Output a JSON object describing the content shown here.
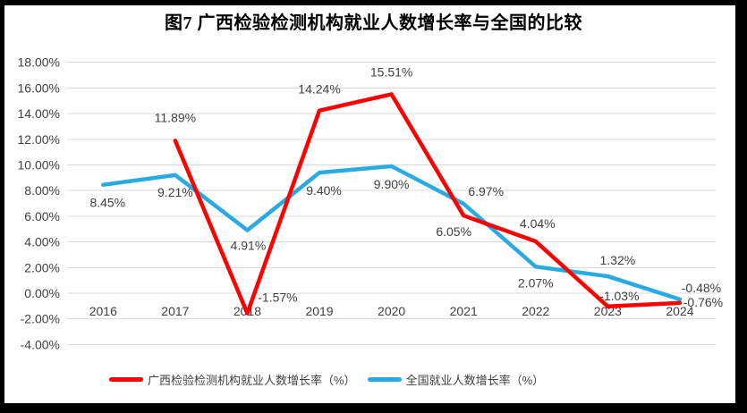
{
  "title": "图7 广西检验检测机构就业人数增长率与全国的比较",
  "chart_data": {
    "type": "line",
    "title": "图7 广西检验检测机构就业人数增长率与全国的比较",
    "categories": [
      "2016",
      "2017",
      "2018",
      "2019",
      "2020",
      "2021",
      "2022",
      "2023",
      "2024"
    ],
    "series": [
      {
        "name": "广西检验检测机构就业人数增长率（%）",
        "color": "#FF0000",
        "values": [
          null,
          11.89,
          -1.57,
          14.24,
          15.51,
          6.05,
          4.04,
          -1.03,
          -0.76
        ],
        "labels": [
          "",
          "11.89%",
          "-1.57%",
          "14.24%",
          "15.51%",
          "6.05%",
          "4.04%",
          "-1.03%",
          "-0.76%"
        ]
      },
      {
        "name": "全国就业人数增长率（%）",
        "color": "#29ABE2",
        "values": [
          8.45,
          9.21,
          4.91,
          9.4,
          9.9,
          6.97,
          2.07,
          1.32,
          -0.48
        ],
        "labels": [
          "8.45%",
          "9.21%",
          "4.91%",
          "9.40%",
          "9.90%",
          "6.97%",
          "2.07%",
          "1.32%",
          "-0.48%"
        ]
      }
    ],
    "y_axis": {
      "min": -4,
      "max": 18,
      "step": 2,
      "ticks": [
        {
          "value": 18,
          "label": "18.00%"
        },
        {
          "value": 16,
          "label": "16.00%"
        },
        {
          "value": 14,
          "label": "14.00%"
        },
        {
          "value": 12,
          "label": "12.00%"
        },
        {
          "value": 10,
          "label": "10.00%"
        },
        {
          "value": 8,
          "label": "8.00%"
        },
        {
          "value": 6,
          "label": "6.00%"
        },
        {
          "value": 4,
          "label": "4.00%"
        },
        {
          "value": 2,
          "label": "2.00%"
        },
        {
          "value": 0,
          "label": "0.00%"
        },
        {
          "value": -2,
          "label": "-2.00%"
        },
        {
          "value": -4,
          "label": "-4.00%"
        }
      ]
    },
    "grid": true,
    "gridline_color": "#D9D9D9",
    "axis_text_color": "#404040",
    "data_label_color": "#404040",
    "legend_position": "bottom"
  },
  "legend": {
    "items": [
      {
        "label": "广西检验检测机构就业人数增长率（%）",
        "color": "#FF0000"
      },
      {
        "label": "全国就业人数增长率（%）",
        "color": "#29ABE2"
      }
    ]
  }
}
